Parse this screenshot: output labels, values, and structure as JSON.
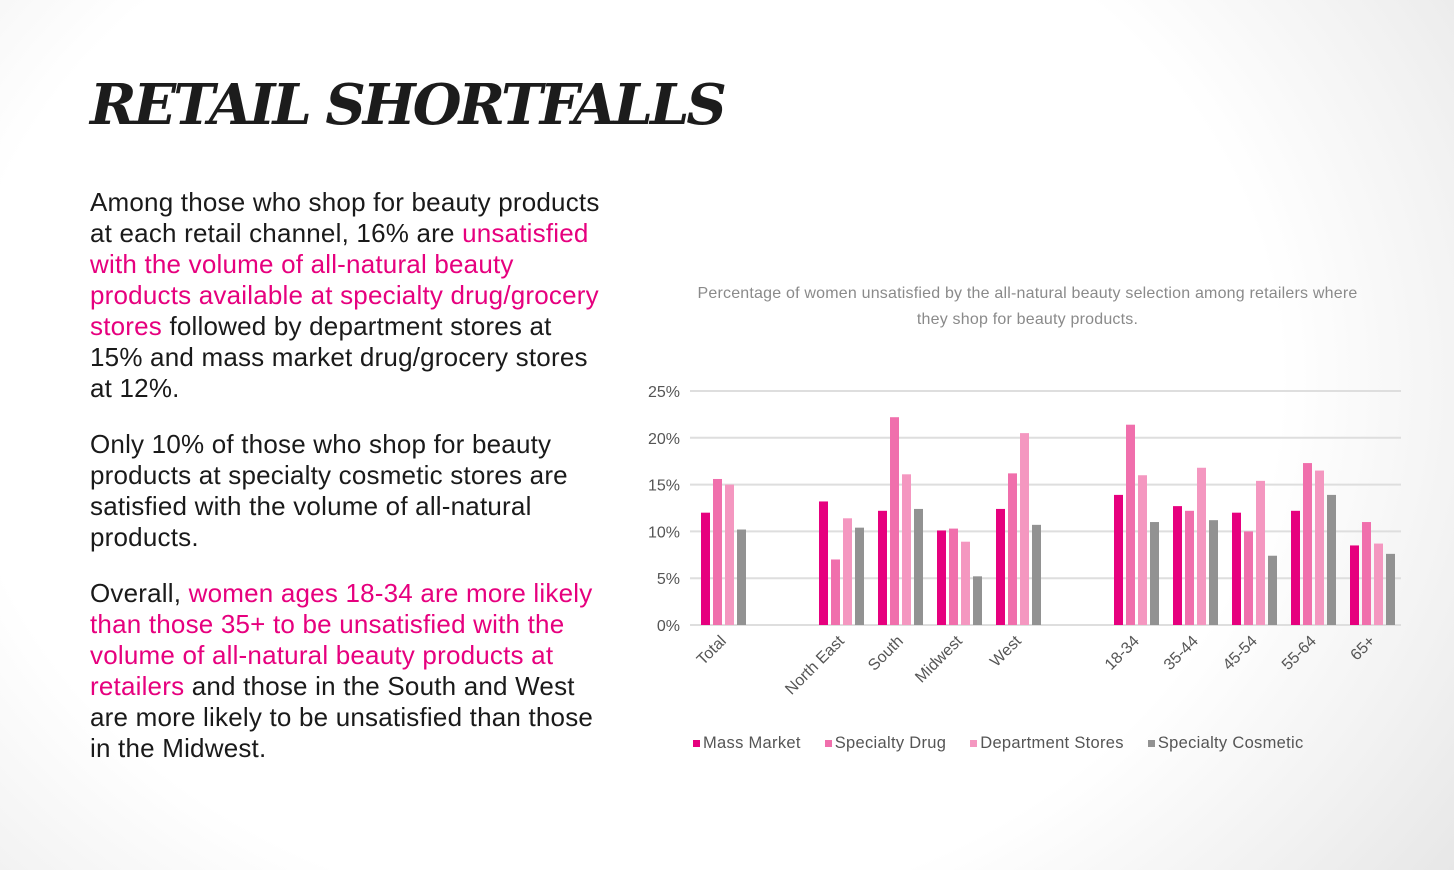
{
  "title": "RETAIL SHORTFALLS",
  "paragraphs": [
    [
      {
        "text": "Among those who shop for beauty products at each retail channel, 16% are ",
        "highlight": false
      },
      {
        "text": "unsatisfied with the volume of all-natural beauty products available at specialty drug/grocery stores",
        "highlight": true
      },
      {
        "text": " followed by department stores at 15% and mass market drug/grocery stores at 12%.",
        "highlight": false
      }
    ],
    [
      {
        "text": "Only 10% of those who shop for beauty products at specialty cosmetic stores are satisfied with the volume of all-natural products.",
        "highlight": false
      }
    ],
    [
      {
        "text": "Overall, ",
        "highlight": false
      },
      {
        "text": "women ages 18-34 are more likely than those 35+ to be unsatisfied with the volume of all-natural beauty products at retailers",
        "highlight": true
      },
      {
        "text": " and those in the South and West are more likely to be unsatisfied than those in the Midwest.",
        "highlight": false
      }
    ]
  ],
  "colors": {
    "highlight": "#e6007e"
  },
  "chart_data": {
    "type": "bar",
    "title": "Percentage of women unsatisfied by the all-natural beauty selection among retailers where they shop for beauty products.",
    "categories": [
      "Total",
      "North East",
      "South",
      "Midwest",
      "West",
      "18-34",
      "35-44",
      "45-54",
      "55-64",
      "65+"
    ],
    "series": [
      {
        "name": "Mass Market",
        "color": "#e6007e",
        "values": [
          12,
          13.2,
          12.2,
          10.1,
          12.4,
          13.9,
          12.7,
          12.0,
          12.2,
          8.5
        ]
      },
      {
        "name": "Specialty Drug",
        "color": "#f06fac",
        "values": [
          15.6,
          7.0,
          22.2,
          10.3,
          16.2,
          21.4,
          12.2,
          10.0,
          17.3,
          11.0
        ]
      },
      {
        "name": "Department Stores",
        "color": "#f497c0",
        "values": [
          15,
          11.4,
          16.1,
          8.9,
          20.5,
          16.0,
          16.8,
          15.4,
          16.5,
          8.7
        ]
      },
      {
        "name": "Specialty Cosmetic",
        "color": "#929292",
        "values": [
          10.2,
          10.4,
          12.4,
          5.2,
          10.7,
          11.0,
          11.2,
          7.4,
          13.9,
          7.6
        ]
      }
    ],
    "ylim": [
      0,
      25
    ],
    "yticks": [
      "0%",
      "5%",
      "10%",
      "15%",
      "20%",
      "25%"
    ],
    "grid": true,
    "legend": "bottom"
  }
}
